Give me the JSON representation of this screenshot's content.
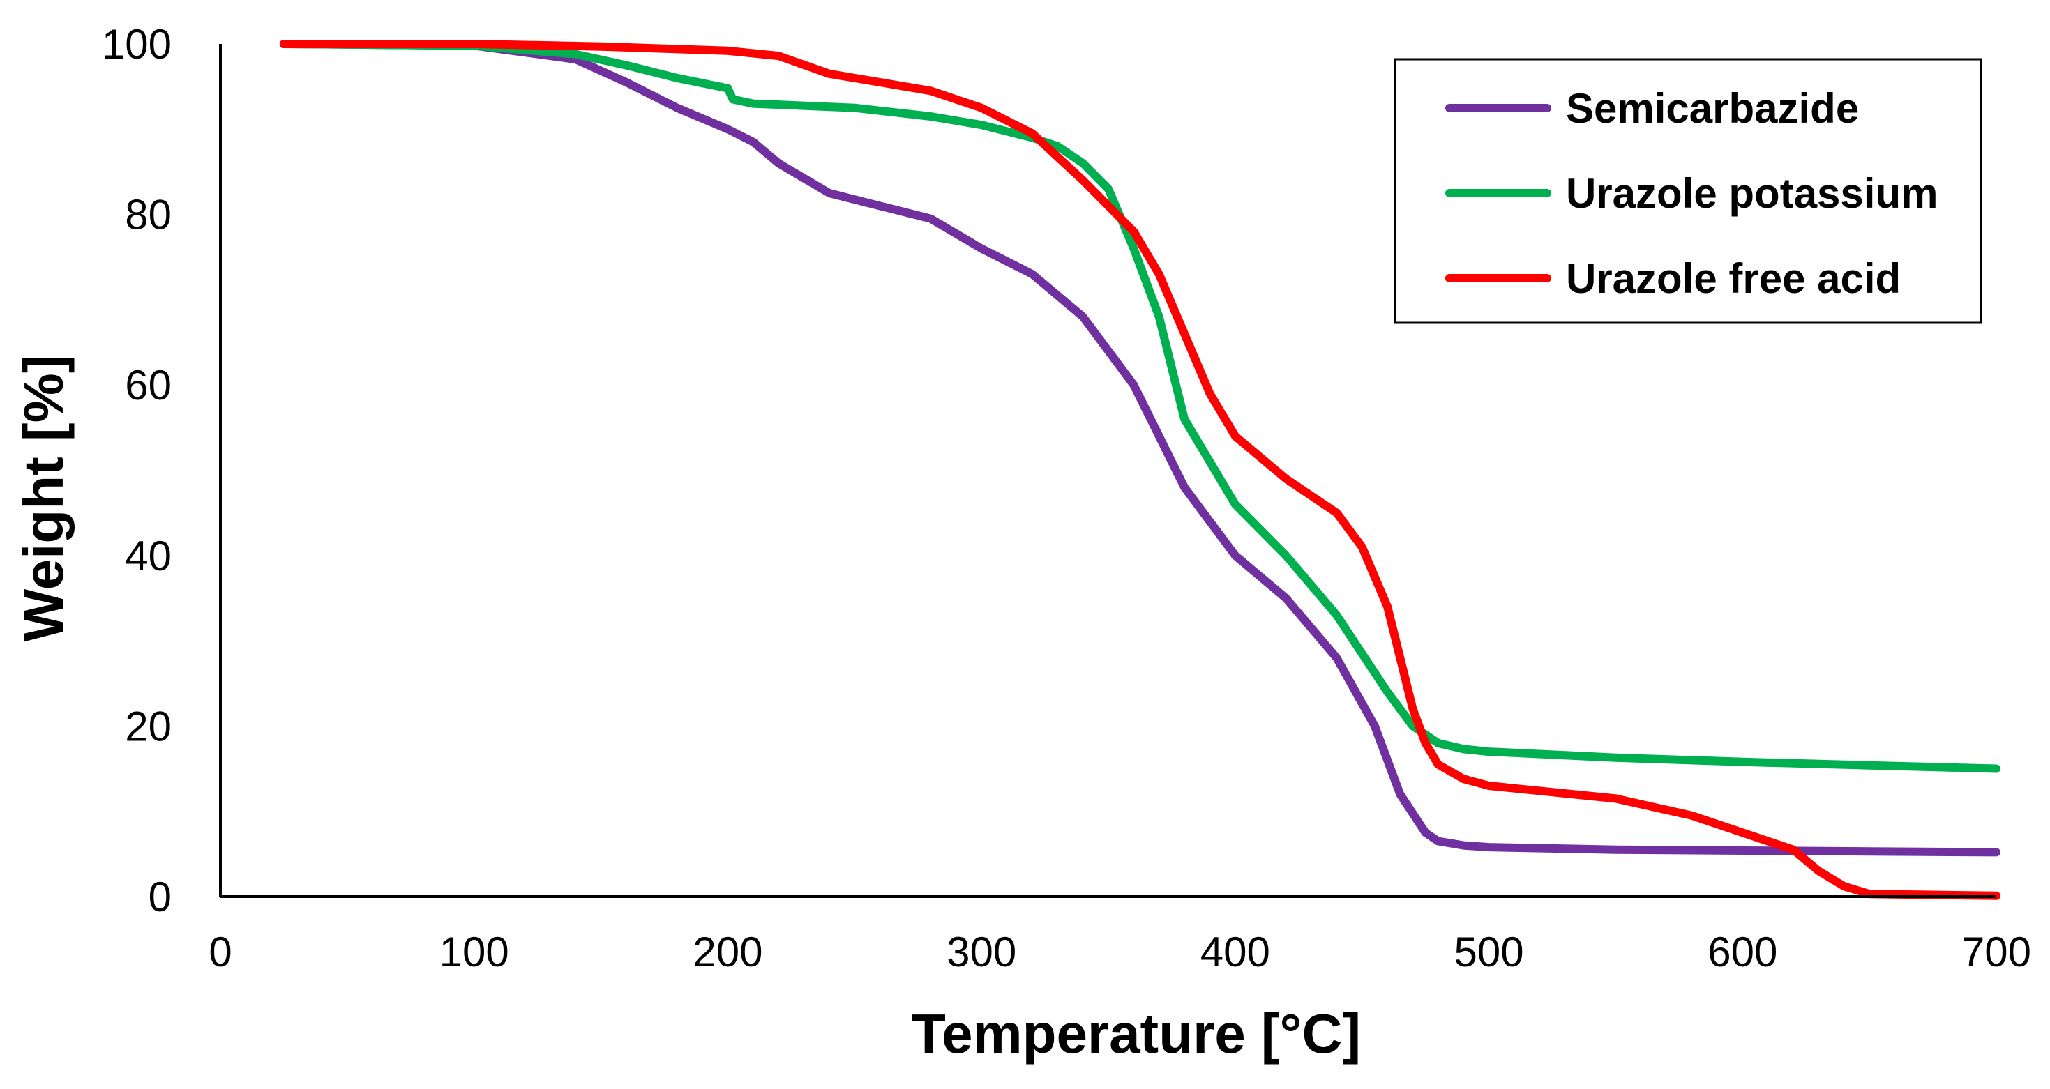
{
  "chart_data": {
    "type": "line",
    "title": "",
    "xlabel": "Temperature  [°C]",
    "ylabel": "Weight  [%]",
    "xlim": [
      0,
      700
    ],
    "ylim": [
      0,
      100
    ],
    "xticks": [
      "0",
      "100",
      "200",
      "300",
      "400",
      "500",
      "600",
      "700"
    ],
    "yticks": [
      "0",
      "20",
      "40",
      "60",
      "80",
      "100"
    ],
    "grid": false,
    "legend_position": "top-right",
    "series": [
      {
        "name": "Semicarbazide",
        "color": "#7030A0",
        "x": [
          25,
          100,
          140,
          160,
          180,
          200,
          210,
          220,
          240,
          260,
          280,
          300,
          320,
          340,
          360,
          380,
          400,
          420,
          440,
          455,
          465,
          475,
          480,
          490,
          500,
          550,
          600,
          650,
          700
        ],
        "y": [
          100,
          99.8,
          98.2,
          95.5,
          92.5,
          90,
          88.5,
          86,
          82.5,
          81,
          79.5,
          76,
          73,
          68,
          60,
          48,
          40,
          35,
          28,
          20,
          12,
          7.5,
          6.5,
          6,
          5.8,
          5.5,
          5.4,
          5.3,
          5.2
        ]
      },
      {
        "name": "Urazole potassium",
        "color": "#00B050",
        "x": [
          25,
          100,
          140,
          160,
          180,
          200,
          202,
          210,
          250,
          280,
          300,
          320,
          330,
          340,
          350,
          360,
          370,
          380,
          400,
          420,
          440,
          460,
          470,
          480,
          490,
          500,
          550,
          600,
          650,
          700
        ],
        "y": [
          100,
          99.8,
          98.8,
          97.5,
          96,
          94.8,
          93.5,
          93,
          92.5,
          91.5,
          90.5,
          89,
          88,
          86,
          83,
          76,
          68,
          56,
          46,
          40,
          33,
          24,
          20,
          18,
          17.3,
          17,
          16.3,
          15.8,
          15.4,
          15
        ]
      },
      {
        "name": "Urazole free acid",
        "color": "#FF0000",
        "x": [
          25,
          100,
          150,
          200,
          220,
          240,
          260,
          280,
          300,
          320,
          340,
          360,
          370,
          380,
          390,
          400,
          420,
          440,
          450,
          460,
          465,
          470,
          475,
          480,
          490,
          500,
          550,
          580,
          600,
          620,
          630,
          640,
          650,
          700
        ],
        "y": [
          100,
          100,
          99.7,
          99.2,
          98.6,
          96.5,
          95.5,
          94.5,
          92.5,
          89.5,
          84,
          78,
          73,
          66,
          59,
          54,
          49,
          45,
          41,
          34,
          28,
          22,
          18,
          15.5,
          13.8,
          13,
          11.5,
          9.5,
          7.5,
          5.5,
          3,
          1.2,
          0.3,
          0.1
        ]
      }
    ]
  }
}
